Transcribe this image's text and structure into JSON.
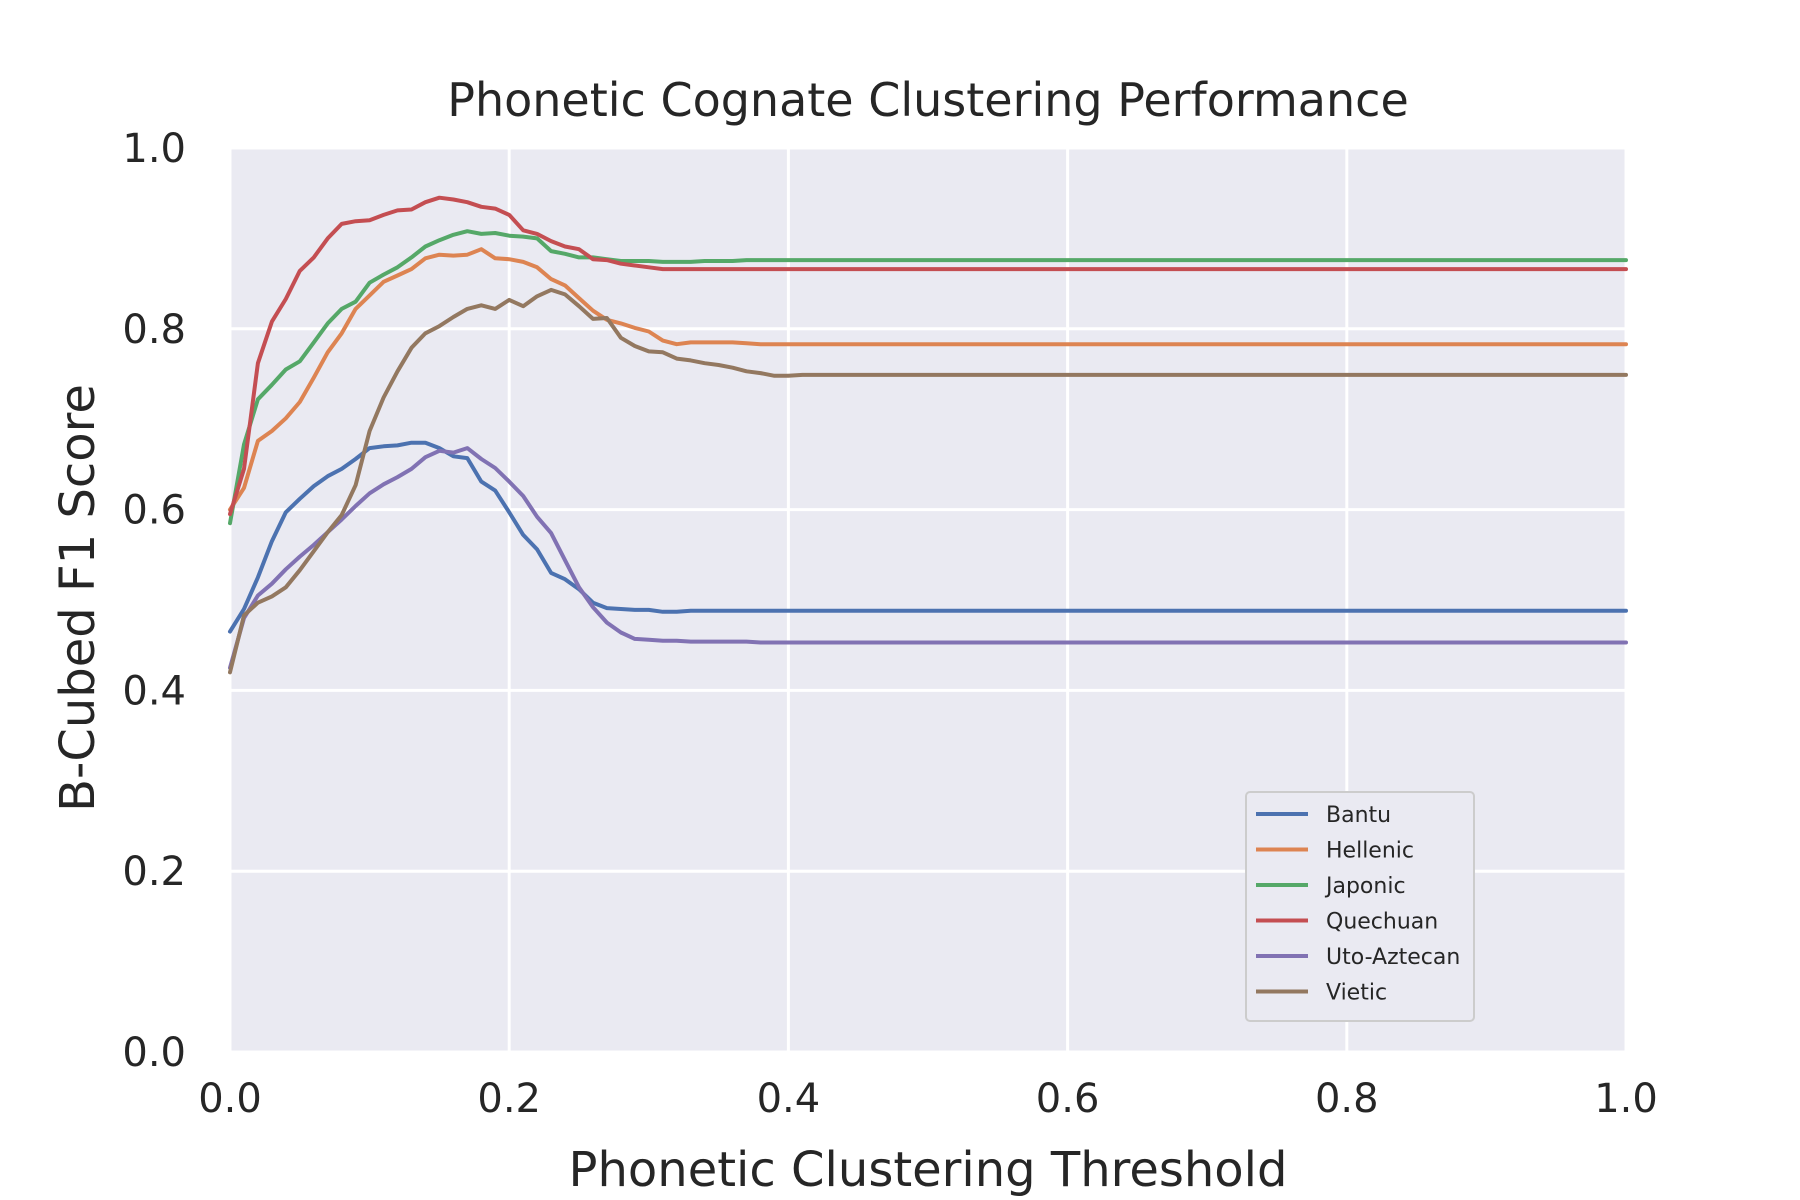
{
  "chart_data": {
    "type": "line",
    "title": "Phonetic Cognate Clustering Performance",
    "xlabel": "Phonetic Clustering Threshold",
    "ylabel": "B-Cubed F1 Score",
    "xlim": [
      0.0,
      1.0
    ],
    "ylim": [
      0.0,
      1.0
    ],
    "xticks": [
      "0.0",
      "0.2",
      "0.4",
      "0.6",
      "0.8",
      "1.0"
    ],
    "yticks": [
      "0.0",
      "0.2",
      "0.4",
      "0.6",
      "0.8",
      "1.0"
    ],
    "grid": true,
    "legend_position": "lower right",
    "x": [
      0.0,
      0.01,
      0.02,
      0.03,
      0.04,
      0.05,
      0.06,
      0.07,
      0.08,
      0.09,
      0.1,
      0.11,
      0.12,
      0.13,
      0.14,
      0.15,
      0.16,
      0.17,
      0.18,
      0.19,
      0.2,
      0.21,
      0.22,
      0.23,
      0.24,
      0.25,
      0.26,
      0.27,
      0.28,
      0.29,
      0.3,
      0.31,
      0.32,
      0.33,
      0.34,
      0.35,
      0.36,
      0.37,
      0.38,
      0.39,
      0.4,
      0.41,
      0.42,
      1.0
    ],
    "series": [
      {
        "name": "Bantu",
        "color": "#4c72b0",
        "values": [
          0.465,
          0.49,
          0.525,
          0.565,
          0.597,
          0.612,
          0.626,
          0.637,
          0.645,
          0.656,
          0.668,
          0.67,
          0.671,
          0.674,
          0.674,
          0.668,
          0.659,
          0.657,
          0.631,
          0.621,
          0.597,
          0.572,
          0.556,
          0.53,
          0.523,
          0.512,
          0.497,
          0.491,
          0.49,
          0.489,
          0.489,
          0.487,
          0.487,
          0.488,
          0.488,
          0.488,
          0.488,
          0.488,
          0.488,
          0.488,
          0.488,
          0.488,
          0.488,
          0.488
        ]
      },
      {
        "name": "Hellenic",
        "color": "#dd8452",
        "values": [
          0.6,
          0.624,
          0.676,
          0.687,
          0.701,
          0.719,
          0.746,
          0.774,
          0.795,
          0.822,
          0.837,
          0.852,
          0.859,
          0.866,
          0.878,
          0.882,
          0.881,
          0.882,
          0.888,
          0.878,
          0.877,
          0.874,
          0.868,
          0.855,
          0.848,
          0.834,
          0.82,
          0.81,
          0.806,
          0.801,
          0.797,
          0.787,
          0.783,
          0.785,
          0.785,
          0.785,
          0.785,
          0.784,
          0.783,
          0.783,
          0.783,
          0.783,
          0.783,
          0.783
        ]
      },
      {
        "name": "Japonic",
        "color": "#55a868",
        "values": [
          0.585,
          0.672,
          0.722,
          0.738,
          0.755,
          0.764,
          0.785,
          0.806,
          0.822,
          0.83,
          0.851,
          0.86,
          0.868,
          0.879,
          0.891,
          0.898,
          0.904,
          0.908,
          0.905,
          0.906,
          0.903,
          0.902,
          0.9,
          0.886,
          0.883,
          0.879,
          0.879,
          0.877,
          0.875,
          0.875,
          0.875,
          0.874,
          0.874,
          0.874,
          0.875,
          0.875,
          0.875,
          0.876,
          0.876,
          0.876,
          0.876,
          0.876,
          0.876,
          0.876
        ]
      },
      {
        "name": "Quechuan",
        "color": "#c44e52",
        "values": [
          0.595,
          0.645,
          0.762,
          0.808,
          0.833,
          0.864,
          0.879,
          0.9,
          0.916,
          0.919,
          0.92,
          0.926,
          0.931,
          0.932,
          0.94,
          0.945,
          0.943,
          0.94,
          0.935,
          0.933,
          0.926,
          0.909,
          0.905,
          0.897,
          0.891,
          0.888,
          0.877,
          0.876,
          0.872,
          0.87,
          0.868,
          0.866,
          0.866,
          0.866,
          0.866,
          0.866,
          0.866,
          0.866,
          0.866,
          0.866,
          0.866,
          0.866,
          0.866,
          0.866
        ]
      },
      {
        "name": "Uto-Aztecan",
        "color": "#8172b3",
        "values": [
          0.425,
          0.48,
          0.505,
          0.518,
          0.534,
          0.548,
          0.561,
          0.575,
          0.589,
          0.604,
          0.618,
          0.628,
          0.636,
          0.645,
          0.658,
          0.665,
          0.663,
          0.668,
          0.656,
          0.646,
          0.631,
          0.615,
          0.592,
          0.574,
          0.544,
          0.514,
          0.492,
          0.475,
          0.464,
          0.457,
          0.456,
          0.455,
          0.455,
          0.454,
          0.454,
          0.454,
          0.454,
          0.454,
          0.453,
          0.453,
          0.453,
          0.453,
          0.453,
          0.453
        ]
      },
      {
        "name": "Vietic",
        "color": "#937860",
        "values": [
          0.42,
          0.483,
          0.497,
          0.504,
          0.514,
          0.533,
          0.554,
          0.575,
          0.594,
          0.627,
          0.687,
          0.724,
          0.753,
          0.779,
          0.795,
          0.803,
          0.813,
          0.822,
          0.826,
          0.822,
          0.832,
          0.825,
          0.836,
          0.843,
          0.838,
          0.825,
          0.811,
          0.812,
          0.79,
          0.781,
          0.775,
          0.774,
          0.767,
          0.765,
          0.762,
          0.76,
          0.757,
          0.753,
          0.751,
          0.748,
          0.748,
          0.749,
          0.749,
          0.749
        ]
      }
    ]
  }
}
